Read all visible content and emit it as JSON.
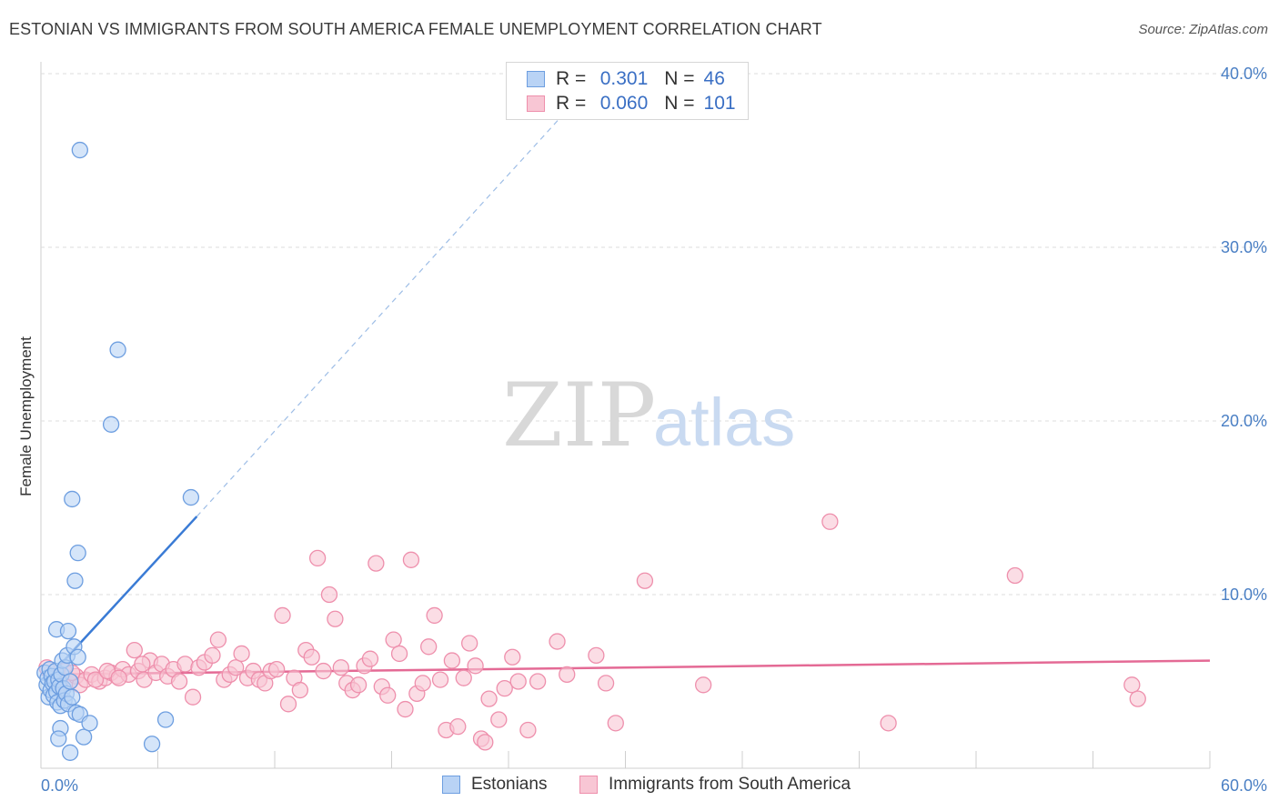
{
  "title": "ESTONIAN VS IMMIGRANTS FROM SOUTH AMERICA FEMALE UNEMPLOYMENT CORRELATION CHART",
  "source": "Source: ZipAtlas.com",
  "watermark": {
    "zip": "ZIP",
    "atlas": "atlas"
  },
  "colors": {
    "blue_fill": "#b9d3f5",
    "blue_stroke": "#6d9ee0",
    "blue_line": "#3a7bd5",
    "pink_fill": "#f8c6d4",
    "pink_stroke": "#ee8fac",
    "pink_line": "#e46a95",
    "tick": "#4a7fc4",
    "grid": "#dcdcdc"
  },
  "legend": {
    "rows": [
      {
        "r_label": "R =",
        "r_value": "0.301",
        "n_label": "N =",
        "n_value": "46"
      },
      {
        "r_label": "R =",
        "r_value": "0.060",
        "n_label": "N =",
        "n_value": "101"
      }
    ],
    "bottom": [
      "Estonians",
      "Immigrants from South America"
    ]
  },
  "chart_data": {
    "type": "scatter",
    "title": "ESTONIAN VS IMMIGRANTS FROM SOUTH AMERICA FEMALE UNEMPLOYMENT CORRELATION CHART",
    "xlabel": "",
    "ylabel": "Female Unemployment",
    "xlim": [
      0,
      60
    ],
    "ylim": [
      0,
      42
    ],
    "x_tick_labels": [
      "0.0%",
      "60.0%"
    ],
    "y_ticks": [
      10,
      20,
      30,
      40
    ],
    "y_tick_labels": [
      "10.0%",
      "20.0%",
      "30.0%",
      "40.0%"
    ],
    "grid": true,
    "series": [
      {
        "name": "Estonians",
        "R": 0.301,
        "N": 46,
        "trend_solid": [
          [
            0.2,
            5.0
          ],
          [
            8.0,
            14.5
          ]
        ],
        "trend_dashed": [
          [
            8.0,
            14.5
          ],
          [
            27.5,
            38.5
          ]
        ],
        "points": [
          [
            0.2,
            5.5
          ],
          [
            0.3,
            4.8
          ],
          [
            0.35,
            5.2
          ],
          [
            0.4,
            4.1
          ],
          [
            0.45,
            5.7
          ],
          [
            0.5,
            4.5
          ],
          [
            0.55,
            5.3
          ],
          [
            0.6,
            4.9
          ],
          [
            0.65,
            4.2
          ],
          [
            0.7,
            5.0
          ],
          [
            0.75,
            5.6
          ],
          [
            0.8,
            4.4
          ],
          [
            0.85,
            3.8
          ],
          [
            0.9,
            5.1
          ],
          [
            0.95,
            4.7
          ],
          [
            1.0,
            3.6
          ],
          [
            1.05,
            5.4
          ],
          [
            1.1,
            6.2
          ],
          [
            1.15,
            4.6
          ],
          [
            1.2,
            3.9
          ],
          [
            1.25,
            5.8
          ],
          [
            1.3,
            4.3
          ],
          [
            1.35,
            6.5
          ],
          [
            1.4,
            3.7
          ],
          [
            1.5,
            5.0
          ],
          [
            1.6,
            4.1
          ],
          [
            1.7,
            7.0
          ],
          [
            1.8,
            3.2
          ],
          [
            0.8,
            8.0
          ],
          [
            1.4,
            7.9
          ],
          [
            1.0,
            2.3
          ],
          [
            0.9,
            1.7
          ],
          [
            1.5,
            0.9
          ],
          [
            2.0,
            3.1
          ],
          [
            2.2,
            1.8
          ],
          [
            2.5,
            2.6
          ],
          [
            1.9,
            6.4
          ],
          [
            1.6,
            15.5
          ],
          [
            1.75,
            10.8
          ],
          [
            1.9,
            12.4
          ],
          [
            2.0,
            35.6
          ],
          [
            3.6,
            19.8
          ],
          [
            3.95,
            24.1
          ],
          [
            7.7,
            15.6
          ],
          [
            5.7,
            1.4
          ],
          [
            6.4,
            2.8
          ]
        ]
      },
      {
        "name": "Immigrants from South America",
        "R": 0.06,
        "N": 101,
        "trend_solid": [
          [
            0.0,
            5.4
          ],
          [
            60.0,
            6.2
          ]
        ],
        "points": [
          [
            0.6,
            5.2
          ],
          [
            1.0,
            4.9
          ],
          [
            1.2,
            5.6
          ],
          [
            1.5,
            5.0
          ],
          [
            1.8,
            5.3
          ],
          [
            2.0,
            4.8
          ],
          [
            2.3,
            5.1
          ],
          [
            2.6,
            5.4
          ],
          [
            3.0,
            5.0
          ],
          [
            3.3,
            5.2
          ],
          [
            3.6,
            5.5
          ],
          [
            3.9,
            5.3
          ],
          [
            4.2,
            5.7
          ],
          [
            4.5,
            5.4
          ],
          [
            4.8,
            6.8
          ],
          [
            5.0,
            5.6
          ],
          [
            5.3,
            5.1
          ],
          [
            5.6,
            6.2
          ],
          [
            5.9,
            5.5
          ],
          [
            6.2,
            6.0
          ],
          [
            6.5,
            5.3
          ],
          [
            6.8,
            5.7
          ],
          [
            7.1,
            5.0
          ],
          [
            7.4,
            6.0
          ],
          [
            7.8,
            4.1
          ],
          [
            8.1,
            5.8
          ],
          [
            8.4,
            6.1
          ],
          [
            8.8,
            6.5
          ],
          [
            9.1,
            7.4
          ],
          [
            9.4,
            5.1
          ],
          [
            9.7,
            5.4
          ],
          [
            10.0,
            5.8
          ],
          [
            10.3,
            6.6
          ],
          [
            10.6,
            5.2
          ],
          [
            10.9,
            5.6
          ],
          [
            11.2,
            5.1
          ],
          [
            11.5,
            4.9
          ],
          [
            11.8,
            5.6
          ],
          [
            12.1,
            5.7
          ],
          [
            12.4,
            8.8
          ],
          [
            12.7,
            3.7
          ],
          [
            13.0,
            5.2
          ],
          [
            13.3,
            4.5
          ],
          [
            13.6,
            6.8
          ],
          [
            13.9,
            6.4
          ],
          [
            14.2,
            12.1
          ],
          [
            14.5,
            5.6
          ],
          [
            14.8,
            10.0
          ],
          [
            15.1,
            8.6
          ],
          [
            15.4,
            5.8
          ],
          [
            15.7,
            4.9
          ],
          [
            16.0,
            4.5
          ],
          [
            16.3,
            4.8
          ],
          [
            16.6,
            5.9
          ],
          [
            16.9,
            6.3
          ],
          [
            17.2,
            11.8
          ],
          [
            17.5,
            4.7
          ],
          [
            17.8,
            4.2
          ],
          [
            18.1,
            7.4
          ],
          [
            18.4,
            6.6
          ],
          [
            18.7,
            3.4
          ],
          [
            19.0,
            12.0
          ],
          [
            19.3,
            4.3
          ],
          [
            19.6,
            4.9
          ],
          [
            19.9,
            7.0
          ],
          [
            20.2,
            8.8
          ],
          [
            20.5,
            5.1
          ],
          [
            20.8,
            2.2
          ],
          [
            21.1,
            6.2
          ],
          [
            21.4,
            2.4
          ],
          [
            21.7,
            5.2
          ],
          [
            22.0,
            7.2
          ],
          [
            22.3,
            5.9
          ],
          [
            22.6,
            1.7
          ],
          [
            23.0,
            4.0
          ],
          [
            23.5,
            2.8
          ],
          [
            23.8,
            4.6
          ],
          [
            24.2,
            6.4
          ],
          [
            24.5,
            5.0
          ],
          [
            25.0,
            2.2
          ],
          [
            25.5,
            5.0
          ],
          [
            26.5,
            7.3
          ],
          [
            27.0,
            5.4
          ],
          [
            28.5,
            6.5
          ],
          [
            29.0,
            4.9
          ],
          [
            29.5,
            2.6
          ],
          [
            31.0,
            10.8
          ],
          [
            34.0,
            4.8
          ],
          [
            40.5,
            14.2
          ],
          [
            43.5,
            2.6
          ],
          [
            50.0,
            11.1
          ],
          [
            56.0,
            4.8
          ],
          [
            56.3,
            4.0
          ],
          [
            0.3,
            5.8
          ],
          [
            0.9,
            5.1
          ],
          [
            1.6,
            5.5
          ],
          [
            2.8,
            5.1
          ],
          [
            3.4,
            5.6
          ],
          [
            4.0,
            5.2
          ],
          [
            22.8,
            1.5
          ],
          [
            5.2,
            6.0
          ]
        ]
      }
    ]
  }
}
